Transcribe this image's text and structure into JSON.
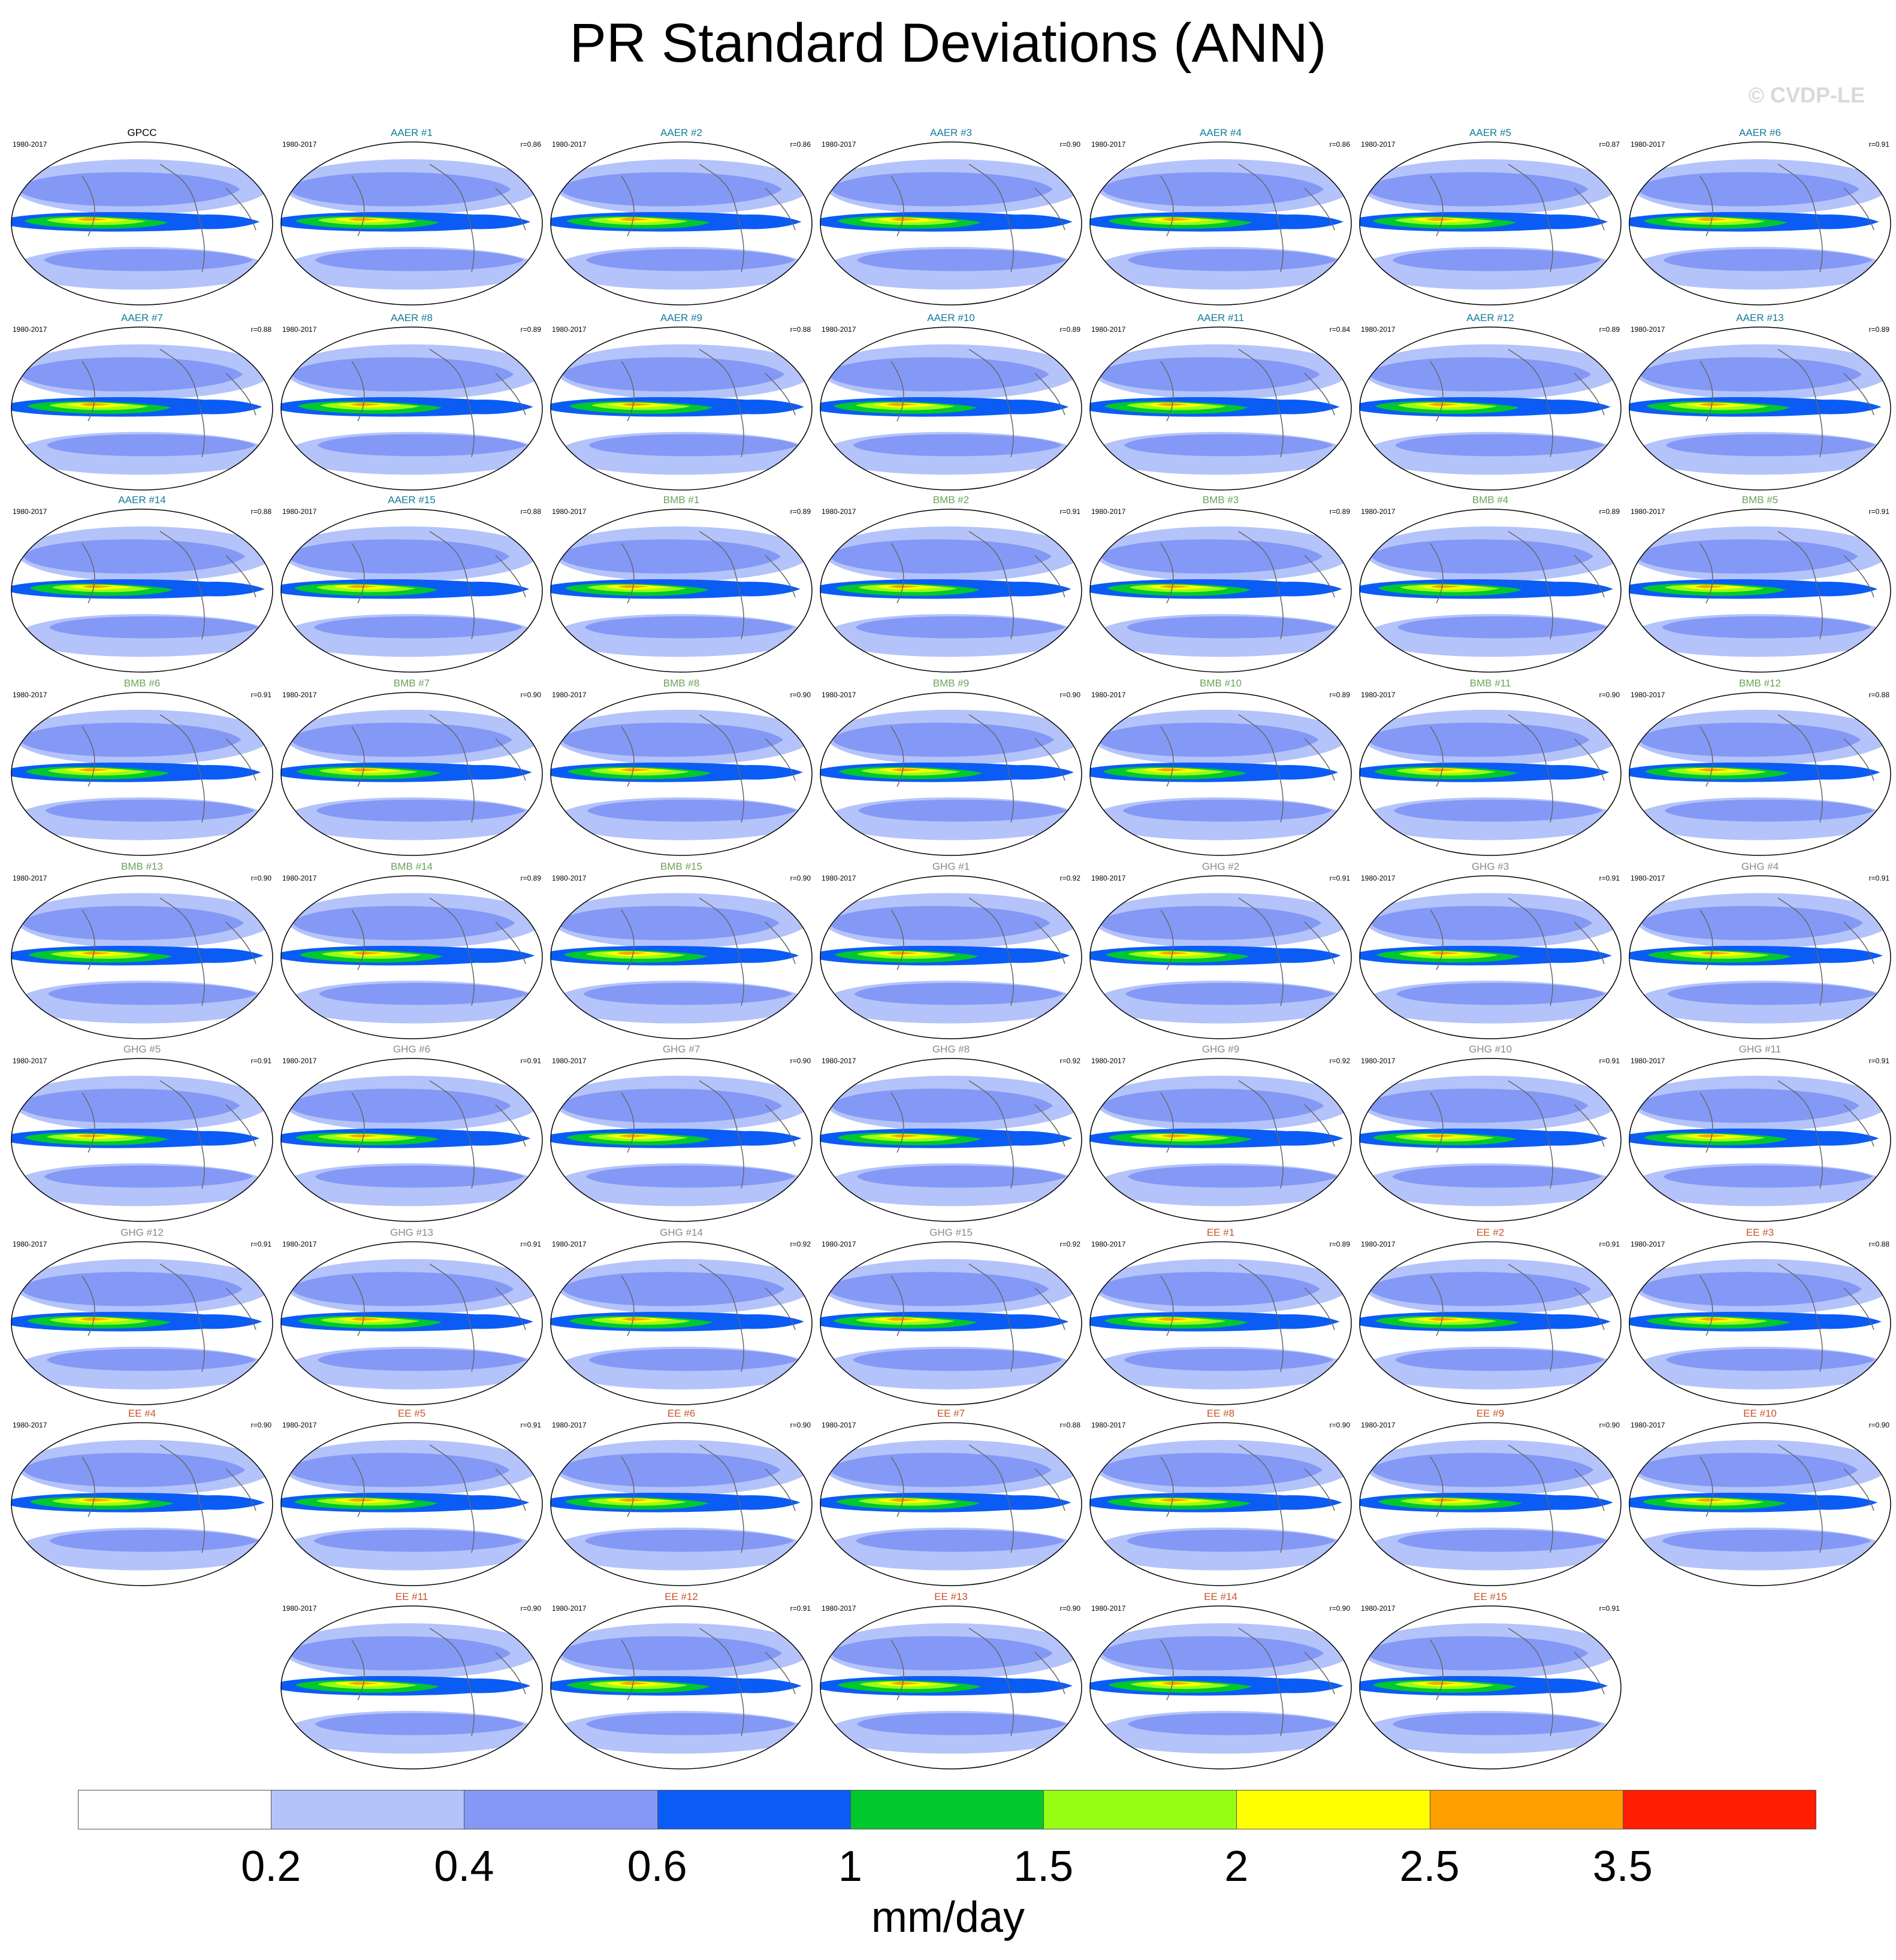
{
  "title": "PR Standard Deviations (ANN)",
  "copyright": "© CVDP-LE",
  "colors": {
    "levels": [
      "#ffffff",
      "#b4c3fa",
      "#8499f5",
      "#0a5cf5",
      "#00c82d",
      "#96ff14",
      "#ffff00",
      "#ffa000",
      "#ff1e00"
    ],
    "title_obs": "#000000",
    "title_AAER": "#137a9a",
    "title_BMB": "#6aa35a",
    "title_GHG": "#8a8a8a",
    "title_EE": "#c8542a"
  },
  "colorbar": {
    "ticks": [
      "0.2",
      "0.4",
      "0.6",
      "1",
      "1.5",
      "2",
      "2.5",
      "3.5"
    ],
    "units": "mm/day"
  },
  "chart_data": {
    "type": "heatmap",
    "variable": "PR Standard Deviations (ANN)",
    "units": "mm/day",
    "levels": [
      0.2,
      0.4,
      0.6,
      1,
      1.5,
      2,
      2.5,
      3.5
    ],
    "panels": [
      {
        "name": "GPCC",
        "group": "obs",
        "period": "1980-2017",
        "r": ""
      },
      {
        "name": "AAER #1",
        "group": "AAER",
        "period": "1980-2017",
        "r": "r=0.86"
      },
      {
        "name": "AAER #2",
        "group": "AAER",
        "period": "1980-2017",
        "r": "r=0.86"
      },
      {
        "name": "AAER #3",
        "group": "AAER",
        "period": "1980-2017",
        "r": "r=0.90"
      },
      {
        "name": "AAER #4",
        "group": "AAER",
        "period": "1980-2017",
        "r": "r=0.86"
      },
      {
        "name": "AAER #5",
        "group": "AAER",
        "period": "1980-2017",
        "r": "r=0.87"
      },
      {
        "name": "AAER #6",
        "group": "AAER",
        "period": "1980-2017",
        "r": "r=0.91"
      },
      {
        "name": "AAER #7",
        "group": "AAER",
        "period": "1980-2017",
        "r": "r=0.88"
      },
      {
        "name": "AAER #8",
        "group": "AAER",
        "period": "1980-2017",
        "r": "r=0.89"
      },
      {
        "name": "AAER #9",
        "group": "AAER",
        "period": "1980-2017",
        "r": "r=0.88"
      },
      {
        "name": "AAER #10",
        "group": "AAER",
        "period": "1980-2017",
        "r": "r=0.89"
      },
      {
        "name": "AAER #11",
        "group": "AAER",
        "period": "1980-2017",
        "r": "r=0.84"
      },
      {
        "name": "AAER #12",
        "group": "AAER",
        "period": "1980-2017",
        "r": "r=0.89"
      },
      {
        "name": "AAER #13",
        "group": "AAER",
        "period": "1980-2017",
        "r": "r=0.89"
      },
      {
        "name": "AAER #14",
        "group": "AAER",
        "period": "1980-2017",
        "r": "r=0.88"
      },
      {
        "name": "AAER #15",
        "group": "AAER",
        "period": "1980-2017",
        "r": "r=0.88"
      },
      {
        "name": "BMB #1",
        "group": "BMB",
        "period": "1980-2017",
        "r": "r=0.89"
      },
      {
        "name": "BMB #2",
        "group": "BMB",
        "period": "1980-2017",
        "r": "r=0.91"
      },
      {
        "name": "BMB #3",
        "group": "BMB",
        "period": "1980-2017",
        "r": "r=0.89"
      },
      {
        "name": "BMB #4",
        "group": "BMB",
        "period": "1980-2017",
        "r": "r=0.89"
      },
      {
        "name": "BMB #5",
        "group": "BMB",
        "period": "1980-2017",
        "r": "r=0.91"
      },
      {
        "name": "BMB #6",
        "group": "BMB",
        "period": "1980-2017",
        "r": "r=0.91"
      },
      {
        "name": "BMB #7",
        "group": "BMB",
        "period": "1980-2017",
        "r": "r=0.90"
      },
      {
        "name": "BMB #8",
        "group": "BMB",
        "period": "1980-2017",
        "r": "r=0.90"
      },
      {
        "name": "BMB #9",
        "group": "BMB",
        "period": "1980-2017",
        "r": "r=0.90"
      },
      {
        "name": "BMB #10",
        "group": "BMB",
        "period": "1980-2017",
        "r": "r=0.89"
      },
      {
        "name": "BMB #11",
        "group": "BMB",
        "period": "1980-2017",
        "r": "r=0.90"
      },
      {
        "name": "BMB #12",
        "group": "BMB",
        "period": "1980-2017",
        "r": "r=0.88"
      },
      {
        "name": "BMB #13",
        "group": "BMB",
        "period": "1980-2017",
        "r": "r=0.90"
      },
      {
        "name": "BMB #14",
        "group": "BMB",
        "period": "1980-2017",
        "r": "r=0.89"
      },
      {
        "name": "BMB #15",
        "group": "BMB",
        "period": "1980-2017",
        "r": "r=0.90"
      },
      {
        "name": "GHG #1",
        "group": "GHG",
        "period": "1980-2017",
        "r": "r=0.92"
      },
      {
        "name": "GHG #2",
        "group": "GHG",
        "period": "1980-2017",
        "r": "r=0.91"
      },
      {
        "name": "GHG #3",
        "group": "GHG",
        "period": "1980-2017",
        "r": "r=0.91"
      },
      {
        "name": "GHG #4",
        "group": "GHG",
        "period": "1980-2017",
        "r": "r=0.91"
      },
      {
        "name": "GHG #5",
        "group": "GHG",
        "period": "1980-2017",
        "r": "r=0.91"
      },
      {
        "name": "GHG #6",
        "group": "GHG",
        "period": "1980-2017",
        "r": "r=0.91"
      },
      {
        "name": "GHG #7",
        "group": "GHG",
        "period": "1980-2017",
        "r": "r=0.90"
      },
      {
        "name": "GHG #8",
        "group": "GHG",
        "period": "1980-2017",
        "r": "r=0.92"
      },
      {
        "name": "GHG #9",
        "group": "GHG",
        "period": "1980-2017",
        "r": "r=0.92"
      },
      {
        "name": "GHG #10",
        "group": "GHG",
        "period": "1980-2017",
        "r": "r=0.91"
      },
      {
        "name": "GHG #11",
        "group": "GHG",
        "period": "1980-2017",
        "r": "r=0.91"
      },
      {
        "name": "GHG #12",
        "group": "GHG",
        "period": "1980-2017",
        "r": "r=0.91"
      },
      {
        "name": "GHG #13",
        "group": "GHG",
        "period": "1980-2017",
        "r": "r=0.91"
      },
      {
        "name": "GHG #14",
        "group": "GHG",
        "period": "1980-2017",
        "r": "r=0.92"
      },
      {
        "name": "GHG #15",
        "group": "GHG",
        "period": "1980-2017",
        "r": "r=0.92"
      },
      {
        "name": "EE #1",
        "group": "EE",
        "period": "1980-2017",
        "r": "r=0.89"
      },
      {
        "name": "EE #2",
        "group": "EE",
        "period": "1980-2017",
        "r": "r=0.91"
      },
      {
        "name": "EE #3",
        "group": "EE",
        "period": "1980-2017",
        "r": "r=0.88"
      },
      {
        "name": "EE #4",
        "group": "EE",
        "period": "1980-2017",
        "r": "r=0.90"
      },
      {
        "name": "EE #5",
        "group": "EE",
        "period": "1980-2017",
        "r": "r=0.91"
      },
      {
        "name": "EE #6",
        "group": "EE",
        "period": "1980-2017",
        "r": "r=0.90"
      },
      {
        "name": "EE #7",
        "group": "EE",
        "period": "1980-2017",
        "r": "r=0.88"
      },
      {
        "name": "EE #8",
        "group": "EE",
        "period": "1980-2017",
        "r": "r=0.90"
      },
      {
        "name": "EE #9",
        "group": "EE",
        "period": "1980-2017",
        "r": "r=0.90"
      },
      {
        "name": "EE #10",
        "group": "EE",
        "period": "1980-2017",
        "r": "r=0.90"
      },
      {
        "name": "EE #11",
        "group": "EE",
        "period": "1980-2017",
        "r": "r=0.90"
      },
      {
        "name": "EE #12",
        "group": "EE",
        "period": "1980-2017",
        "r": "r=0.91"
      },
      {
        "name": "EE #13",
        "group": "EE",
        "period": "1980-2017",
        "r": "r=0.90"
      },
      {
        "name": "EE #14",
        "group": "EE",
        "period": "1980-2017",
        "r": "r=0.90"
      },
      {
        "name": "EE #15",
        "group": "EE",
        "period": "1980-2017",
        "r": "r=0.91"
      }
    ]
  }
}
